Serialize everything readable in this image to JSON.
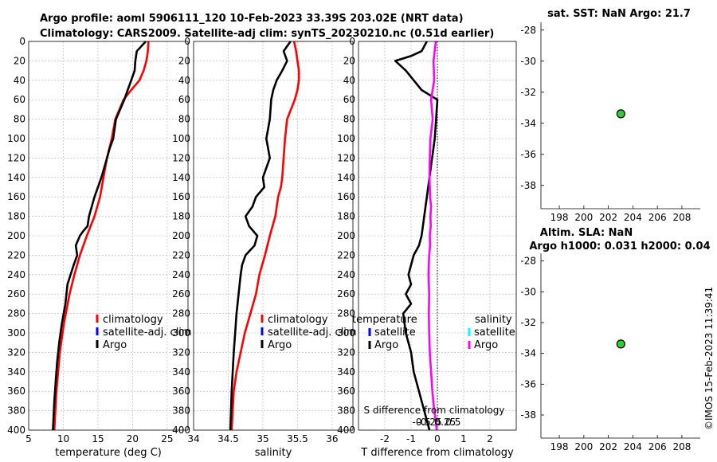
{
  "header": {
    "line1": "Argo profile: aoml 5906111_120 10-Feb-2023 33.39S 203.02E (NRT data)",
    "line2": "Climatology: CARS2009. Satellite-adj clim: synTS_20230210.nc (0.51d earlier)"
  },
  "watermark": "©IMOS 15-Feb-2023 11:39:41",
  "colors": {
    "climatology": "#ff0000",
    "satellite_adj": "#0000ff",
    "argo": "#000000",
    "sat_salinity": "#00ffff",
    "argo_salinity": "#ff00ff",
    "marker": "#33cc33"
  },
  "chart_data": [
    {
      "id": "temperature",
      "type": "line",
      "xlabel": "temperature (deg C)",
      "xlim": [
        5,
        28
      ],
      "xticks": [
        5,
        10,
        15,
        20,
        25
      ],
      "ylim": [
        0,
        400
      ],
      "yticks": [
        0,
        20,
        40,
        60,
        80,
        100,
        120,
        140,
        160,
        180,
        200,
        220,
        240,
        260,
        280,
        300,
        320,
        340,
        360,
        380,
        400
      ],
      "legend": [
        "climatology",
        "satellite-adj. clim",
        "Argo"
      ],
      "series": [
        {
          "name": "climatology",
          "color": "#ff0000",
          "x": [
            22.3,
            22.2,
            22.0,
            21.6,
            21.0,
            19.8,
            18.7,
            18.1,
            17.5,
            17.0,
            16.3,
            15.8,
            15.3,
            14.5,
            13.4,
            12.4,
            11.6,
            10.9,
            10.1,
            9.5,
            9.0,
            8.7
          ],
          "y": [
            0,
            10,
            20,
            30,
            40,
            50,
            60,
            70,
            80,
            100,
            120,
            140,
            160,
            180,
            200,
            220,
            240,
            260,
            290,
            320,
            360,
            400
          ]
        },
        {
          "name": "Argo",
          "color": "#000000",
          "x": [
            21.9,
            20.6,
            20.4,
            20.3,
            19.8,
            19.3,
            18.8,
            18.2,
            17.6,
            17.4,
            17.2,
            16.7,
            16.3,
            15.9,
            15.5,
            14.5,
            13.7,
            13.5,
            12.9,
            12.4,
            12.1,
            11.8,
            12.0,
            11.5,
            10.6,
            10.3,
            9.8,
            9.4,
            9.1,
            8.9,
            8.7,
            8.5
          ],
          "y": [
            0,
            10,
            20,
            30,
            40,
            50,
            60,
            70,
            80,
            90,
            100,
            110,
            120,
            130,
            140,
            160,
            180,
            190,
            195,
            200,
            205,
            210,
            220,
            230,
            250,
            270,
            290,
            310,
            330,
            350,
            370,
            400
          ]
        }
      ]
    },
    {
      "id": "salinity",
      "type": "line",
      "xlabel": "salinity",
      "xlim": [
        34,
        36.3
      ],
      "xticks": [
        34,
        34.5,
        35,
        35.5,
        36
      ],
      "ylim": [
        0,
        400
      ],
      "legend": [
        "climatology",
        "satellite-adj. clim",
        "Argo"
      ],
      "series": [
        {
          "name": "climatology",
          "color": "#ff0000",
          "x": [
            35.45,
            35.48,
            35.5,
            35.52,
            35.52,
            35.5,
            35.46,
            35.35,
            35.32,
            35.3,
            35.28,
            35.26,
            35.22,
            35.18,
            35.1,
            35.03,
            34.95,
            34.9,
            34.82,
            34.74,
            34.68,
            34.62,
            34.58,
            34.55
          ],
          "y": [
            0,
            10,
            20,
            30,
            40,
            50,
            60,
            80,
            100,
            120,
            140,
            150,
            160,
            180,
            200,
            220,
            240,
            260,
            280,
            300,
            320,
            340,
            360,
            400
          ]
        },
        {
          "name": "Argo",
          "color": "#000000",
          "x": [
            35.4,
            35.3,
            35.35,
            35.28,
            35.2,
            35.15,
            35.12,
            35.1,
            35.05,
            35.1,
            35.0,
            35.02,
            34.9,
            34.85,
            34.75,
            34.8,
            34.92,
            34.88,
            34.75,
            34.7,
            34.68,
            34.65,
            34.62,
            34.6,
            34.58,
            34.55,
            34.53
          ],
          "y": [
            0,
            10,
            20,
            30,
            40,
            50,
            60,
            80,
            100,
            120,
            140,
            150,
            160,
            170,
            180,
            190,
            200,
            210,
            220,
            230,
            240,
            260,
            280,
            300,
            320,
            360,
            400
          ]
        }
      ]
    },
    {
      "id": "difference",
      "type": "line",
      "xlabel": "T difference from climatology",
      "xlabel_top": "S difference from climatology",
      "xlim": [
        -3,
        3
      ],
      "xticks": [
        -2,
        -1,
        0,
        1,
        2
      ],
      "top_ticks": [
        -0.5,
        -0.25,
        0,
        0.25,
        0.5
      ],
      "top_tick_labels": [
        "-0.5",
        "-0.25",
        "0",
        "0.25",
        "0.5"
      ],
      "ylim": [
        0,
        400
      ],
      "legend_temperature": {
        "title": "temperature",
        "items": [
          "satellite",
          "Argo"
        ]
      },
      "legend_salinity": {
        "title": "salinity",
        "items": [
          "satellite",
          "Argo"
        ]
      },
      "series": [
        {
          "name": "T difference Argo",
          "color": "#000000",
          "x": [
            -0.4,
            -0.6,
            -1.0,
            -1.6,
            -1.2,
            -0.9,
            -0.6,
            -0.3,
            0,
            -0.05,
            -0.1,
            -0.2,
            -0.3,
            -0.4,
            -0.5,
            -0.6,
            -0.7,
            -0.9,
            -1.1,
            -1.0,
            -1.2,
            -1.0,
            -1.3,
            -1.2,
            -1.0,
            -0.9,
            -0.7,
            -0.5,
            -0.3
          ],
          "y": [
            0,
            10,
            15,
            20,
            30,
            40,
            50,
            55,
            60,
            80,
            100,
            120,
            140,
            160,
            180,
            200,
            210,
            220,
            240,
            250,
            260,
            270,
            280,
            300,
            320,
            340,
            360,
            380,
            400
          ]
        },
        {
          "name": "S difference Argo",
          "color": "#ff00ff",
          "x": [
            -0.05,
            -0.12,
            -0.1,
            -0.2,
            -0.15,
            -0.22,
            -0.24,
            -0.25,
            -0.23,
            -0.2,
            -0.22,
            -0.21,
            -0.24,
            -0.23,
            -0.26,
            -0.27,
            -0.28,
            -0.26,
            -0.27,
            -0.26,
            -0.24,
            -0.2,
            -0.16,
            -0.1,
            -0.05,
            -0.02
          ],
          "y": [
            0,
            20,
            40,
            60,
            80,
            100,
            120,
            140,
            160,
            170,
            180,
            190,
            200,
            210,
            220,
            230,
            240,
            260,
            280,
            300,
            320,
            340,
            360,
            380,
            390,
            400
          ]
        }
      ]
    },
    {
      "id": "sst_map",
      "type": "scatter",
      "title": "sat. SST: NaN Argo: 21.7",
      "xlim": [
        196.5,
        209.5
      ],
      "xticks": [
        198,
        200,
        202,
        204,
        206,
        208
      ],
      "ylim": [
        -39.5,
        -27.5
      ],
      "yticks": [
        -28,
        -30,
        -32,
        -34,
        -36,
        -38
      ],
      "points": [
        {
          "x": 203.02,
          "y": -33.39
        }
      ]
    },
    {
      "id": "sla_map",
      "type": "scatter",
      "title_line1": "Altim. SLA: NaN",
      "title_line2": "Argo h1000: 0.031 h2000: 0.04",
      "xlim": [
        196.5,
        209.5
      ],
      "xticks": [
        198,
        200,
        202,
        204,
        206,
        208
      ],
      "ylim": [
        -39.5,
        -27.5
      ],
      "yticks": [
        -28,
        -30,
        -32,
        -34,
        -36,
        -38
      ],
      "points": [
        {
          "x": 203.02,
          "y": -33.39
        }
      ]
    }
  ]
}
